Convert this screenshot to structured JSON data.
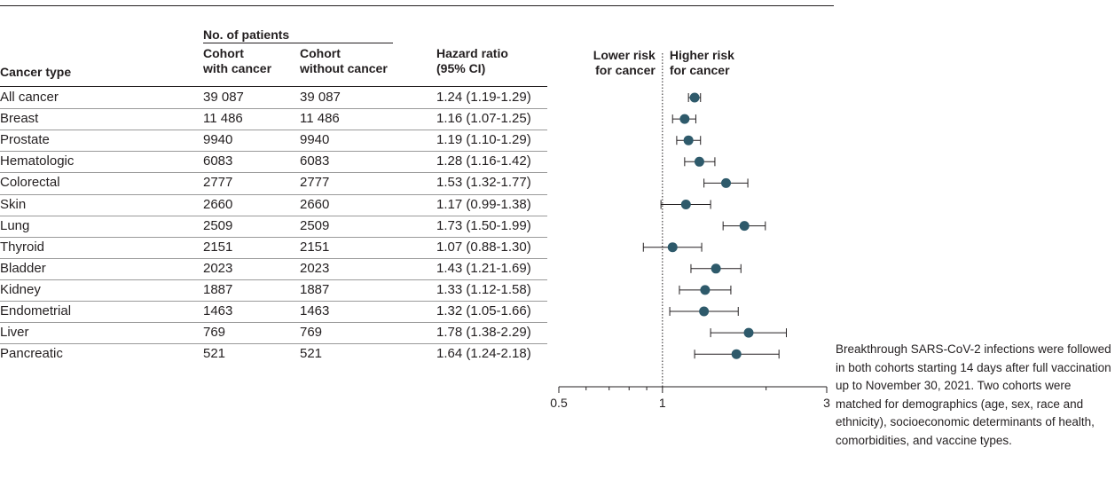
{
  "table": {
    "headers": {
      "cancer_type": "Cancer type",
      "patients_group": "No. of patients",
      "with_cancer_line1": "Cohort",
      "with_cancer_line2": "with cancer",
      "without_cancer_line1": "Cohort",
      "without_cancer_line2": "without cancer",
      "hr_line1": "Hazard ratio",
      "hr_line2": "(95% CI)"
    },
    "rows": [
      {
        "type": "All cancer",
        "with": "39 087",
        "without": "39 087",
        "hr": "1.24 (1.19-1.29)"
      },
      {
        "type": "Breast",
        "with": "11 486",
        "without": "11 486",
        "hr": "1.16 (1.07-1.25)"
      },
      {
        "type": "Prostate",
        "with": "9940",
        "without": "9940",
        "hr": "1.19 (1.10-1.29)"
      },
      {
        "type": "Hematologic",
        "with": "6083",
        "without": "6083",
        "hr": "1.28 (1.16-1.42)"
      },
      {
        "type": "Colorectal",
        "with": "2777",
        "without": "2777",
        "hr": "1.53 (1.32-1.77)"
      },
      {
        "type": "Skin",
        "with": "2660",
        "without": "2660",
        "hr": "1.17 (0.99-1.38)"
      },
      {
        "type": "Lung",
        "with": "2509",
        "without": "2509",
        "hr": "1.73 (1.50-1.99)"
      },
      {
        "type": "Thyroid",
        "with": "2151",
        "without": "2151",
        "hr": "1.07 (0.88-1.30)"
      },
      {
        "type": "Bladder",
        "with": "2023",
        "without": "2023",
        "hr": "1.43 (1.21-1.69)"
      },
      {
        "type": "Kidney",
        "with": "1887",
        "without": "1887",
        "hr": "1.33 (1.12-1.58)"
      },
      {
        "type": "Endometrial",
        "with": "1463",
        "without": "1463",
        "hr": "1.32 (1.05-1.66)"
      },
      {
        "type": "Liver",
        "with": "769",
        "without": "769",
        "hr": "1.78 (1.38-2.29)"
      },
      {
        "type": "Pancreatic",
        "with": "521",
        "without": "521",
        "hr": "1.64 (1.24-2.18)"
      }
    ]
  },
  "chart_data": {
    "type": "scatter",
    "subtype": "forest-plot",
    "xscale": "log",
    "xlim": [
      0.5,
      3
    ],
    "xticks": [
      0.5,
      1,
      3
    ],
    "xtick_labels": [
      "0.5",
      "1",
      "3"
    ],
    "xlabel": "Hazard ratio (95% CI)",
    "reference_line": 1,
    "direction_labels": {
      "lower_line1": "Lower risk",
      "lower_line2": "for cancer",
      "higher_line1": "Higher risk",
      "higher_line2": "for cancer"
    },
    "categories": [
      "All cancer",
      "Breast",
      "Prostate",
      "Hematologic",
      "Colorectal",
      "Skin",
      "Lung",
      "Thyroid",
      "Bladder",
      "Kidney",
      "Endometrial",
      "Liver",
      "Pancreatic"
    ],
    "series": [
      {
        "estimate": [
          1.24,
          1.16,
          1.19,
          1.28,
          1.53,
          1.17,
          1.73,
          1.07,
          1.43,
          1.33,
          1.32,
          1.78,
          1.64
        ],
        "ci_low": [
          1.19,
          1.07,
          1.1,
          1.16,
          1.32,
          0.99,
          1.5,
          0.88,
          1.21,
          1.12,
          1.05,
          1.38,
          1.24
        ],
        "ci_high": [
          1.29,
          1.25,
          1.29,
          1.42,
          1.77,
          1.38,
          1.99,
          1.3,
          1.69,
          1.58,
          1.66,
          2.29,
          2.18
        ]
      }
    ],
    "marker_color": "#2e5a6b"
  },
  "note": {
    "text": "Breakthrough SARS-CoV-2 infections were followed in both cohorts starting 14 days after full vaccination up to November 30, 2021. Two cohorts were matched for demographics (age, sex, race and ethnicity), socioeconomic determinants of health, comorbidities, and vaccine types."
  }
}
